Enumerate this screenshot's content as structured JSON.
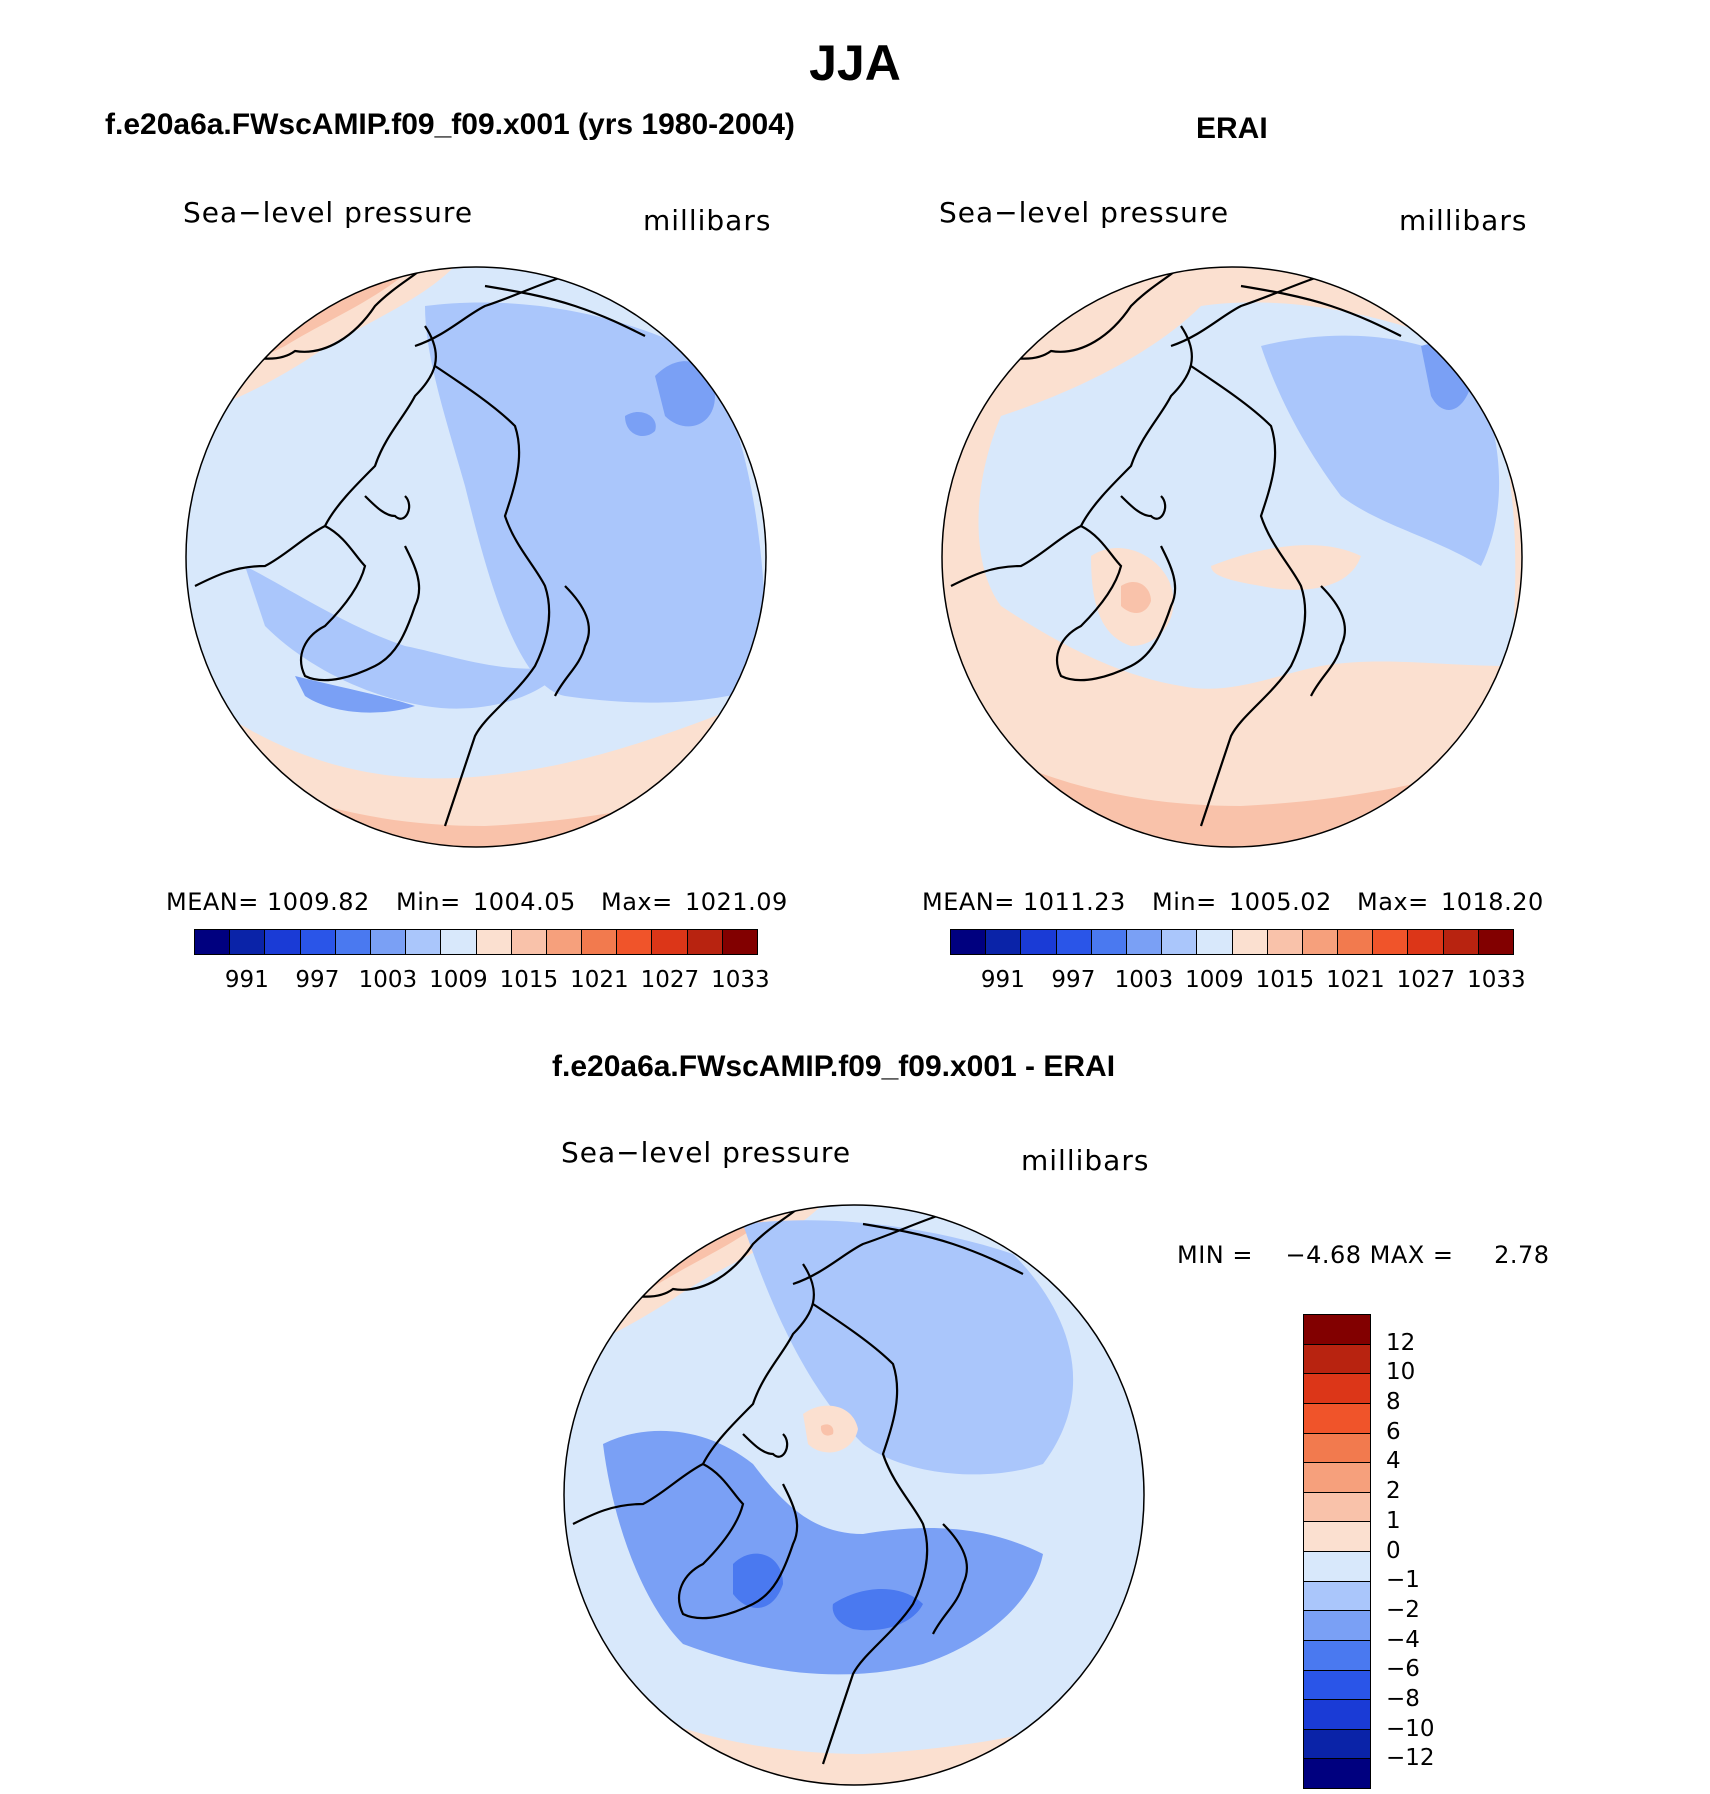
{
  "title": "JJA",
  "panels": {
    "model": {
      "title": "f.e20a6a.FWscAMIP.f09_f09.x001 (yrs 1980-2004)",
      "variable": "Sea−level pressure",
      "units": "millibars",
      "mean_label": "MEAN=",
      "mean": "1009.82",
      "min_label": "Min=",
      "min": "1004.05",
      "max_label": "Max=",
      "max": "1021.09"
    },
    "obs": {
      "title": "ERAI",
      "variable": "Sea−level pressure",
      "units": "millibars",
      "mean_label": "MEAN=",
      "mean": "1011.23",
      "min_label": "Min=",
      "min": "1005.02",
      "max_label": "Max=",
      "max": "1018.20"
    },
    "diff": {
      "title": "f.e20a6a.FWscAMIP.f09_f09.x001 - ERAI",
      "variable": "Sea−level pressure",
      "units": "millibars",
      "minmax": "MIN =    −4.68 MAX =     2.78"
    }
  },
  "colorbar_abs": {
    "ticks": [
      "991",
      "997",
      "1003",
      "1009",
      "1015",
      "1021",
      "1027",
      "1033"
    ],
    "colors": [
      "#00007f",
      "#0a23a8",
      "#1a3bd6",
      "#2a55e8",
      "#4a79f0",
      "#7aa0f5",
      "#aac6fb",
      "#d8e8fb",
      "#fbe0d0",
      "#f9c2aa",
      "#f6a07c",
      "#f27a4e",
      "#f0542a",
      "#dc3618",
      "#b82310",
      "#820000"
    ]
  },
  "colorbar_diff": {
    "ticks": [
      "12",
      "10",
      "8",
      "6",
      "4",
      "2",
      "1",
      "0",
      "−1",
      "−2",
      "−4",
      "−6",
      "−8",
      "−10",
      "−12"
    ],
    "colors": [
      "#820000",
      "#b82310",
      "#dc3618",
      "#f0542a",
      "#f27a4e",
      "#f6a07c",
      "#f9c2aa",
      "#fbe0d0",
      "#d8e8fb",
      "#aac6fb",
      "#7aa0f5",
      "#4a79f0",
      "#2a55e8",
      "#1a3bd6",
      "#0a23a8",
      "#00007f"
    ]
  },
  "map_colors": {
    "land_outline": "#000000",
    "light_blue": "#d8e8fb",
    "mid_blue": "#aac6fb",
    "blue": "#7aa0f5",
    "deep_blue": "#4a79f0",
    "light_red": "#fbe0d0",
    "salmon": "#f9c2aa",
    "orange": "#f6a07c",
    "red_orange": "#f27a4e"
  }
}
